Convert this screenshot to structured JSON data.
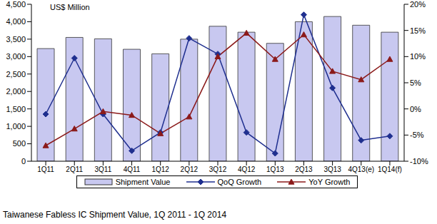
{
  "chart_data": {
    "type": "bar",
    "title": "Taiwanese Fabless IC Shipment Value, 1Q 2011 - 1Q 2014",
    "y_label": "US$ Million",
    "categories": [
      "1Q11",
      "2Q11",
      "3Q11",
      "4Q11",
      "1Q12",
      "2Q12",
      "3Q12",
      "4Q12",
      "1Q13",
      "2Q13",
      "3Q13",
      "4Q13(e)",
      "1Q14(f)"
    ],
    "series": [
      {
        "name": "Shipment Value",
        "type": "bar",
        "color": "#c8c8f0",
        "values": [
          3230,
          3550,
          3510,
          3210,
          3080,
          3500,
          3870,
          3700,
          3380,
          4000,
          4150,
          3900,
          3700
        ]
      },
      {
        "name": "QoQ Growth",
        "type": "line",
        "axis": "y2",
        "color": "#1f2f8f",
        "marker": "diamond",
        "values": [
          -1,
          9.7,
          -1,
          -8,
          -4.5,
          13.5,
          10.5,
          -4.5,
          -8.5,
          18,
          4,
          -6,
          -5.2
        ]
      },
      {
        "name": "YoY Growth",
        "type": "line",
        "axis": "y2",
        "color": "#8b1a1a",
        "marker": "triangle",
        "values": [
          -7,
          -3.8,
          -0.5,
          -1.2,
          -4.7,
          -1.5,
          10,
          14.5,
          9.5,
          14.2,
          7.2,
          5.6,
          9.5
        ]
      }
    ],
    "ylim": [
      0,
      4500
    ],
    "yticks": [
      0,
      500,
      {
        "value": 1000,
        "label": "1,000"
      },
      {
        "value": 1500,
        "label": "1,500"
      },
      {
        "value": 2000,
        "label": "2,000"
      },
      {
        "value": 2500,
        "label": "2,500"
      },
      {
        "value": 3000,
        "label": "3,000"
      },
      {
        "value": 3500,
        "label": "3,500"
      },
      {
        "value": 4000,
        "label": "4,000"
      },
      {
        "value": 4500,
        "label": "4,500"
      }
    ],
    "y2lim": [
      -10,
      20
    ],
    "y2ticks": [
      {
        "value": -10,
        "label": "-10%"
      },
      {
        "value": -5,
        "label": "-5%"
      },
      {
        "value": 0,
        "label": "0%"
      },
      {
        "value": 5,
        "label": "5%"
      },
      {
        "value": 10,
        "label": "10%"
      },
      {
        "value": 15,
        "label": "15%"
      },
      {
        "value": 20,
        "label": "20%"
      }
    ],
    "grid": false,
    "legend": "bottom"
  }
}
